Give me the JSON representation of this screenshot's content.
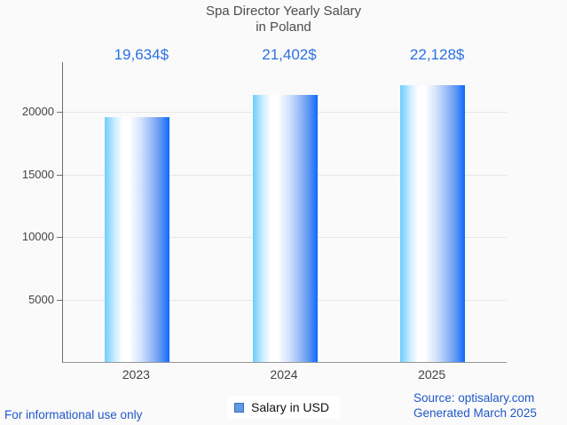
{
  "page": {
    "background_color": "#fafafa"
  },
  "title": {
    "line1": "Spa Director Yearly Salary",
    "line2": "in Poland"
  },
  "legend": {
    "label": "Salary in USD",
    "marker_color": "#5e9ae6",
    "marker_border_color": "#3c6db3"
  },
  "footer": {
    "left_note": "For informational use only",
    "source": "Source: optisalary.com",
    "generated": "Generated March 2025"
  },
  "chart_data": {
    "type": "bar",
    "title": "Spa Director Yearly Salary in Poland",
    "categories": [
      "2023",
      "2024",
      "2025"
    ],
    "values": [
      19634,
      21402,
      22128
    ],
    "value_labels": [
      "19,634$",
      "21,402$",
      "22,128$"
    ],
    "series": [
      {
        "name": "Salary in USD",
        "values": [
          19634,
          21402,
          22128
        ]
      }
    ],
    "xlabel": "",
    "ylabel": "",
    "ylim": [
      0,
      24000
    ],
    "yticks": [
      5000,
      10000,
      15000,
      20000
    ],
    "grid": true,
    "legend_position": "bottom-center",
    "value_label_color": "#2c70e4",
    "bar_gradient": [
      "#6ccdfe",
      "#ffffff",
      "#0d6afd"
    ]
  }
}
